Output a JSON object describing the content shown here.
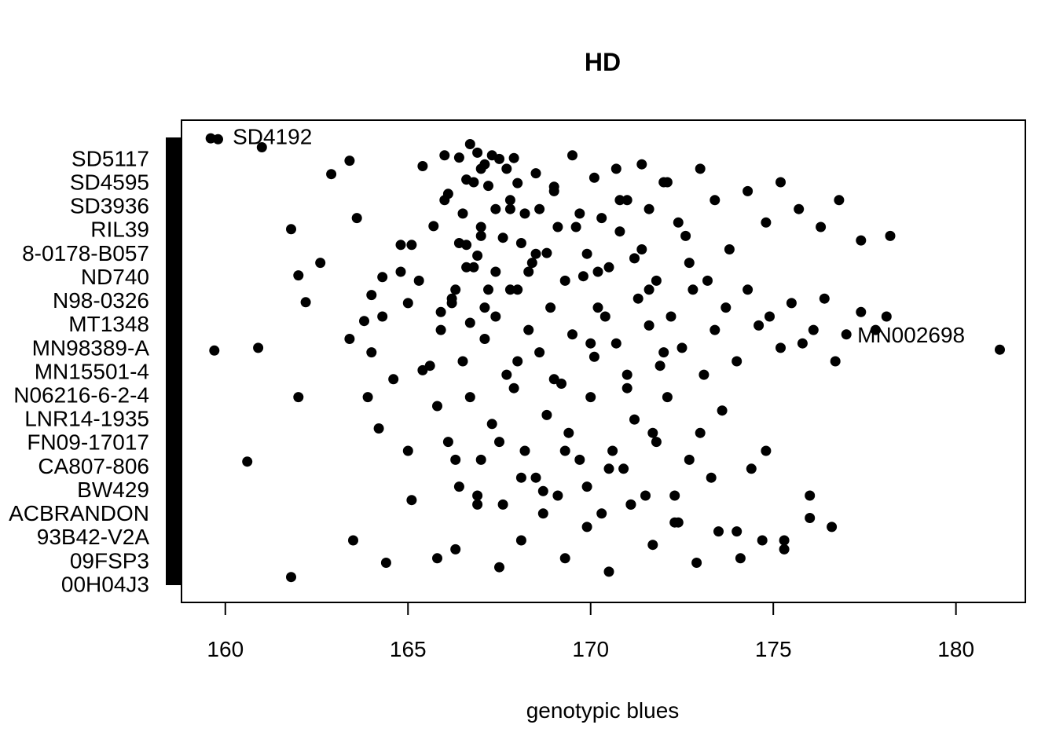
{
  "chart_data": {
    "type": "scatter",
    "title": "HD",
    "xlabel": "genotypic blues",
    "ylabel": "",
    "xlim": [
      158.8,
      181.9
    ],
    "xticks": [
      160,
      165,
      170,
      175,
      180
    ],
    "grid": false,
    "legend": "none",
    "point_color": "#000000",
    "y_tick_labels": [
      "SD5117",
      "SD4595",
      "SD3936",
      "RIL39",
      "8-0178-B057",
      "ND740",
      "N98-0326",
      "MT1348",
      "MN98389-A",
      "MN15501-4",
      "N06216-6-2-4",
      "LNR14-1935",
      "FN09-17017",
      "CA807-806",
      "BW429",
      "ACBRANDON",
      "93B42-V2A",
      "09FSP3",
      "00H04J3"
    ],
    "annotations": [
      {
        "text": "SD4192",
        "x": 160.2,
        "y": 0.998
      },
      {
        "text": "MN002698",
        "x": 177.3,
        "y": 0.555
      }
    ],
    "x": [
      159.6,
      159.8,
      161.0,
      161.8,
      162.2,
      162.9,
      163.4,
      163.6,
      164.0,
      164.3,
      164.8,
      165.1,
      165.4,
      165.7,
      165.9,
      166.0,
      166.1,
      166.2,
      166.3,
      166.4,
      166.4,
      166.5,
      166.6,
      166.6,
      166.7,
      166.7,
      166.8,
      166.9,
      166.9,
      167.0,
      167.0,
      167.1,
      167.1,
      167.2,
      167.3,
      167.4,
      167.4,
      167.5,
      167.6,
      167.7,
      167.8,
      167.8,
      167.9,
      168.0,
      168.1,
      168.2,
      168.3,
      168.5,
      168.6,
      168.8,
      169.0,
      169.1,
      169.3,
      169.5,
      169.7,
      169.9,
      170.1,
      170.3,
      170.5,
      170.7,
      170.8,
      171.0,
      171.2,
      171.4,
      171.6,
      171.8,
      172.1,
      172.4,
      172.7,
      173.0,
      173.4,
      173.8,
      174.3,
      174.8,
      175.2,
      175.7,
      176.3,
      176.8,
      177.4,
      178.2,
      159.7,
      160.9,
      162.0,
      162.6,
      163.4,
      163.8,
      164.0,
      164.3,
      164.8,
      165.0,
      165.3,
      165.6,
      165.9,
      166.2,
      166.5,
      166.8,
      167.1,
      167.4,
      167.7,
      168.0,
      168.3,
      168.6,
      168.9,
      169.2,
      169.5,
      169.8,
      170.1,
      170.4,
      170.7,
      171.0,
      171.3,
      171.6,
      171.9,
      172.2,
      172.5,
      172.8,
      173.1,
      173.4,
      173.7,
      174.0,
      174.3,
      174.6,
      174.9,
      175.2,
      175.5,
      175.8,
      176.1,
      176.4,
      176.7,
      177.0,
      177.4,
      177.8,
      178.1,
      161.8,
      163.9,
      164.2,
      164.6,
      165.0,
      165.4,
      165.8,
      166.1,
      166.4,
      166.7,
      167.0,
      167.3,
      167.6,
      167.9,
      168.2,
      168.5,
      168.8,
      169.1,
      169.4,
      169.7,
      170.0,
      170.3,
      170.6,
      170.9,
      171.2,
      171.5,
      171.8,
      172.1,
      172.4,
      172.7,
      173.0,
      173.3,
      173.6,
      174.0,
      174.4,
      174.8,
      175.3,
      176.0,
      176.6,
      160.6,
      162.0,
      163.5,
      164.4,
      165.1,
      165.8,
      166.3,
      166.9,
      167.5,
      168.1,
      168.7,
      169.3,
      169.9,
      170.5,
      171.1,
      171.7,
      172.3,
      172.9,
      173.5,
      174.1,
      174.7,
      175.3,
      176.0,
      181.2,
      166.0,
      166.6,
      167.2,
      167.8,
      168.4,
      169.0,
      169.6,
      170.2,
      170.8,
      171.4,
      172.0,
      172.6,
      173.2,
      166.3,
      166.9,
      167.5,
      168.1,
      168.7,
      169.3,
      169.9,
      170.5,
      171.1,
      171.7,
      172.3,
      168.0,
      169.0,
      170.0,
      171.0,
      172.0,
      167.0,
      168.5,
      170.2,
      171.6
    ],
    "y": [
      0.998,
      0.996,
      0.978,
      0.795,
      0.632,
      0.918,
      0.948,
      0.82,
      0.648,
      0.688,
      0.7,
      0.76,
      0.936,
      0.802,
      0.61,
      0.96,
      0.874,
      0.63,
      0.66,
      0.955,
      0.764,
      0.83,
      0.906,
      0.71,
      0.985,
      0.586,
      0.9,
      0.966,
      0.736,
      0.93,
      0.8,
      0.94,
      0.62,
      0.892,
      0.96,
      0.84,
      0.7,
      0.952,
      0.776,
      0.93,
      0.86,
      0.66,
      0.954,
      0.898,
      0.764,
      0.83,
      0.7,
      0.92,
      0.84,
      0.742,
      0.89,
      0.8,
      0.68,
      0.96,
      0.83,
      0.74,
      0.91,
      0.82,
      0.71,
      0.93,
      0.79,
      0.86,
      0.73,
      0.94,
      0.84,
      0.68,
      0.9,
      0.81,
      0.72,
      0.93,
      0.86,
      0.75,
      0.88,
      0.81,
      0.9,
      0.84,
      0.8,
      0.86,
      0.77,
      0.78,
      0.524,
      0.53,
      0.692,
      0.72,
      0.55,
      0.59,
      0.52,
      0.6,
      0.76,
      0.63,
      0.68,
      0.49,
      0.57,
      0.64,
      0.5,
      0.71,
      0.55,
      0.6,
      0.47,
      0.66,
      0.57,
      0.52,
      0.62,
      0.45,
      0.56,
      0.69,
      0.51,
      0.6,
      0.54,
      0.47,
      0.64,
      0.58,
      0.49,
      0.6,
      0.53,
      0.66,
      0.47,
      0.57,
      0.62,
      0.5,
      0.66,
      0.58,
      0.6,
      0.53,
      0.63,
      0.54,
      0.57,
      0.64,
      0.5,
      0.56,
      0.61,
      0.57,
      0.6,
      0.018,
      0.42,
      0.35,
      0.46,
      0.3,
      0.48,
      0.4,
      0.32,
      0.22,
      0.42,
      0.28,
      0.36,
      0.18,
      0.44,
      0.3,
      0.24,
      0.38,
      0.2,
      0.34,
      0.28,
      0.42,
      0.16,
      0.3,
      0.26,
      0.37,
      0.2,
      0.32,
      0.42,
      0.14,
      0.28,
      0.34,
      0.24,
      0.39,
      0.12,
      0.26,
      0.3,
      0.1,
      0.2,
      0.13,
      0.276,
      0.42,
      0.1,
      0.05,
      0.19,
      0.06,
      0.08,
      0.18,
      0.04,
      0.1,
      0.21,
      0.06,
      0.13,
      0.03,
      0.18,
      0.09,
      0.2,
      0.05,
      0.12,
      0.06,
      0.1,
      0.08,
      0.15,
      0.526,
      0.86,
      0.76,
      0.66,
      0.84,
      0.72,
      0.88,
      0.8,
      0.7,
      0.86,
      0.75,
      0.9,
      0.78,
      0.68,
      0.28,
      0.2,
      0.32,
      0.24,
      0.16,
      0.3,
      0.22,
      0.26,
      0.18,
      0.34,
      0.14,
      0.5,
      0.46,
      0.54,
      0.44,
      0.52,
      0.78,
      0.74,
      0.62,
      0.66
    ]
  }
}
